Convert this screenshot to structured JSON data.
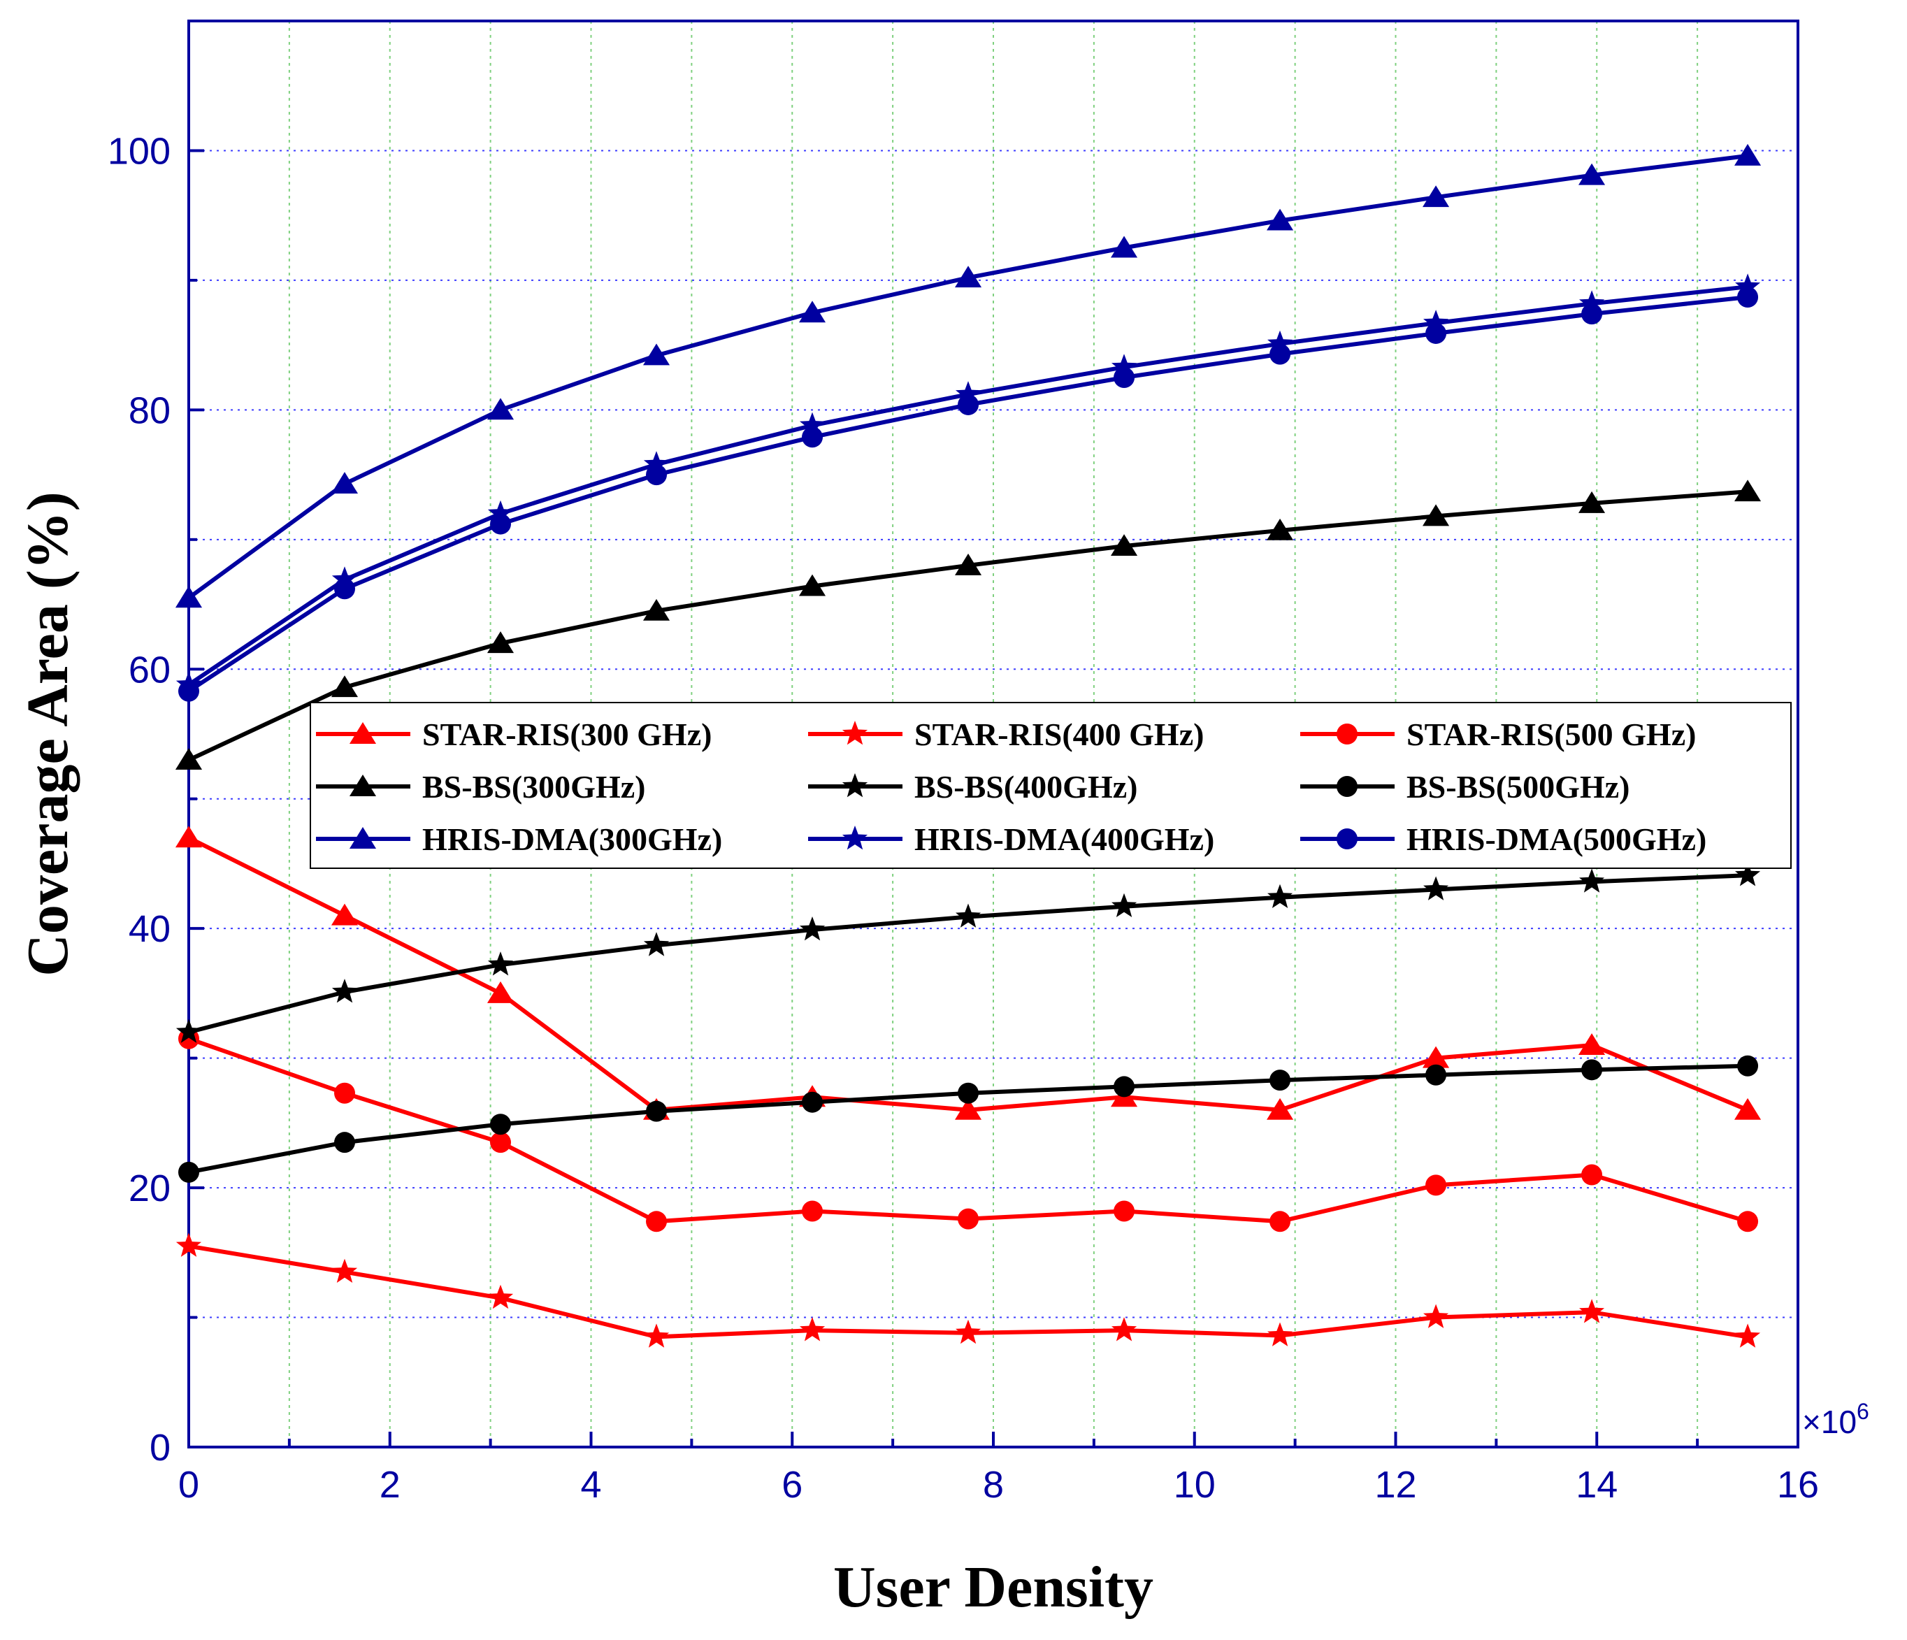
{
  "chart_data": {
    "type": "line",
    "title": "",
    "xlabel": "User Density",
    "ylabel": "Coverage Area (%)",
    "x_multiplier_label": "×10",
    "x_multiplier_exponent": "6",
    "xlim": [
      0,
      16
    ],
    "ylim": [
      0,
      110
    ],
    "x_ticks": [
      0,
      2,
      4,
      6,
      8,
      10,
      12,
      14,
      16
    ],
    "x_tick_labels": [
      "0",
      "2",
      "4",
      "6",
      "8",
      "10",
      "12",
      "14",
      "16"
    ],
    "y_ticks": [
      0,
      20,
      40,
      60,
      80,
      100
    ],
    "y_tick_labels": [
      "0",
      "20",
      "40",
      "60",
      "80",
      "100"
    ],
    "grid": true,
    "legend_position": "center-right",
    "x": [
      0,
      1.55,
      3.1,
      4.65,
      6.2,
      7.75,
      9.3,
      10.85,
      12.4,
      13.95,
      15.5
    ],
    "series": [
      {
        "name": "STAR-RIS(300 GHz)",
        "color": "#ff0000",
        "marker": "triangle",
        "values": [
          47,
          41,
          35,
          26,
          27,
          26,
          27,
          26,
          30,
          31,
          26
        ]
      },
      {
        "name": "STAR-RIS(400 GHz)",
        "color": "#ff0000",
        "marker": "star",
        "values": [
          15.5,
          13.5,
          11.5,
          8.5,
          9,
          8.8,
          9,
          8.6,
          10,
          10.4,
          8.5
        ]
      },
      {
        "name": "STAR-RIS(500 GHz)",
        "color": "#ff0000",
        "marker": "circle",
        "values": [
          31.5,
          27.3,
          23.5,
          17.4,
          18.2,
          17.6,
          18.2,
          17.4,
          20.2,
          21,
          17.4
        ]
      },
      {
        "name": "BS-BS(300GHz)",
        "color": "#000000",
        "marker": "triangle",
        "values": [
          53,
          58.6,
          62,
          64.5,
          66.4,
          68,
          69.5,
          70.7,
          71.8,
          72.8,
          73.7
        ]
      },
      {
        "name": "BS-BS(400GHz)",
        "color": "#000000",
        "marker": "star",
        "values": [
          32,
          35.1,
          37.2,
          38.7,
          39.9,
          40.9,
          41.7,
          42.4,
          43,
          43.6,
          44.1
        ]
      },
      {
        "name": "BS-BS(500GHz)",
        "color": "#000000",
        "marker": "circle",
        "values": [
          21.2,
          23.5,
          24.9,
          25.9,
          26.6,
          27.3,
          27.8,
          28.3,
          28.7,
          29.1,
          29.4
        ]
      },
      {
        "name": "HRIS-DMA(300GHz)",
        "color": "#0000a0",
        "marker": "triangle",
        "values": [
          65.5,
          74.3,
          80,
          84.2,
          87.5,
          90.2,
          92.5,
          94.6,
          96.4,
          98.1,
          99.6
        ]
      },
      {
        "name": "HRIS-DMA(400GHz)",
        "color": "#0000a0",
        "marker": "star",
        "values": [
          58.8,
          66.9,
          72,
          75.8,
          78.8,
          81.2,
          83.3,
          85.1,
          86.7,
          88.2,
          89.5
        ]
      },
      {
        "name": "HRIS-DMA(500GHz)",
        "color": "#0000a0",
        "marker": "circle",
        "values": [
          58.3,
          66.2,
          71.2,
          75,
          77.9,
          80.4,
          82.5,
          84.3,
          85.9,
          87.4,
          88.7
        ]
      }
    ]
  }
}
